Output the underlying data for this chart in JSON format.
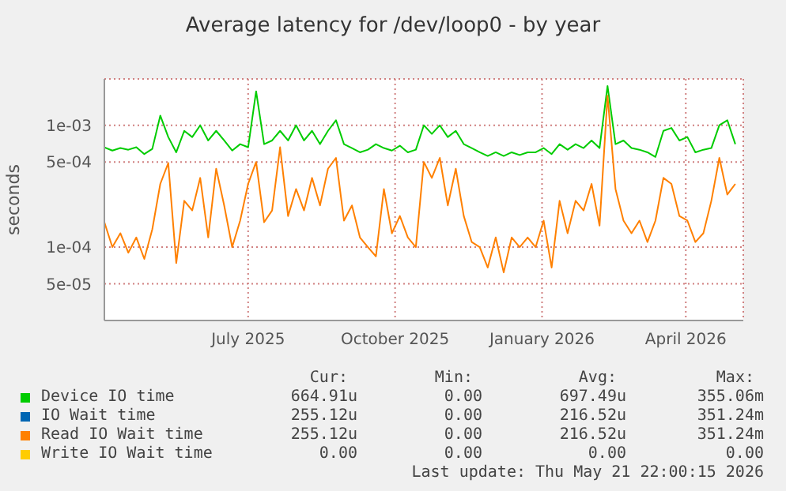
{
  "chart_data": {
    "type": "line",
    "title": "Average latency for /dev/loop0 - by year",
    "ylabel": "seconds",
    "log": "y",
    "grid": true,
    "legend": "bottom",
    "marker": "none",
    "line_style": "solid",
    "x": [
      "2025-04-16",
      "2025-04-21",
      "2025-04-26",
      "2025-05-01",
      "2025-05-06",
      "2025-05-11",
      "2025-05-16",
      "2025-05-21",
      "2025-05-26",
      "2025-05-31",
      "2025-06-05",
      "2025-06-10",
      "2025-06-15",
      "2025-06-20",
      "2025-06-25",
      "2025-06-30",
      "2025-07-05",
      "2025-07-10",
      "2025-07-15",
      "2025-07-20",
      "2025-07-25",
      "2025-07-30",
      "2025-08-04",
      "2025-08-09",
      "2025-08-14",
      "2025-08-19",
      "2025-08-24",
      "2025-08-29",
      "2025-09-03",
      "2025-09-08",
      "2025-09-13",
      "2025-09-18",
      "2025-09-23",
      "2025-09-28",
      "2025-10-03",
      "2025-10-08",
      "2025-10-13",
      "2025-10-18",
      "2025-10-23",
      "2025-10-28",
      "2025-11-02",
      "2025-11-07",
      "2025-11-12",
      "2025-11-17",
      "2025-11-22",
      "2025-11-27",
      "2025-12-02",
      "2025-12-07",
      "2025-12-12",
      "2025-12-17",
      "2025-12-22",
      "2025-12-27",
      "2026-01-01",
      "2026-01-06",
      "2026-01-11",
      "2026-01-16",
      "2026-01-21",
      "2026-01-26",
      "2026-01-31",
      "2026-02-05",
      "2026-02-10",
      "2026-02-15",
      "2026-02-20",
      "2026-02-25",
      "2026-03-02",
      "2026-03-07",
      "2026-03-12",
      "2026-03-17",
      "2026-03-22",
      "2026-03-27",
      "2026-04-01",
      "2026-04-06",
      "2026-04-11",
      "2026-04-16",
      "2026-04-21",
      "2026-04-26",
      "2026-05-01",
      "2026-05-06",
      "2026-05-11",
      "2026-05-16"
    ],
    "xlim": [
      "2025-04-16",
      "2026-05-21"
    ],
    "xticks": [
      {
        "value": "2025-07-15",
        "label": "July 2025"
      },
      {
        "value": "2025-10-15",
        "label": "October 2025"
      },
      {
        "value": "2026-01-15",
        "label": "January 2026"
      },
      {
        "value": "2026-04-15",
        "label": "April 2026"
      }
    ],
    "ylim": [
      2.5e-05,
      0.0024
    ],
    "yticks": [
      {
        "value": 5e-05,
        "label": "5e-05"
      },
      {
        "value": 0.0001,
        "label": "1e-04"
      },
      {
        "value": 0.0005,
        "label": "5e-04"
      },
      {
        "value": 0.001,
        "label": "1e-03"
      }
    ],
    "series": [
      {
        "name": "Device IO time",
        "color": "#00cc00",
        "values": [
          0.00066,
          0.00062,
          0.00065,
          0.00063,
          0.00066,
          0.00058,
          0.00064,
          0.0012,
          0.0008,
          0.0006,
          0.0009,
          0.0008,
          0.001,
          0.00075,
          0.0009,
          0.00075,
          0.00062,
          0.0007,
          0.00066,
          0.0019,
          0.0007,
          0.00075,
          0.0009,
          0.00075,
          0.001,
          0.00075,
          0.0009,
          0.0007,
          0.0009,
          0.0011,
          0.0007,
          0.00065,
          0.0006,
          0.00063,
          0.0007,
          0.00065,
          0.00062,
          0.00068,
          0.0006,
          0.00063,
          0.001,
          0.00085,
          0.001,
          0.0008,
          0.0009,
          0.0007,
          0.00065,
          0.0006,
          0.00056,
          0.0006,
          0.00056,
          0.0006,
          0.00057,
          0.0006,
          0.0006,
          0.00065,
          0.00058,
          0.0007,
          0.00063,
          0.0007,
          0.00065,
          0.00075,
          0.00065,
          0.0021,
          0.0007,
          0.00075,
          0.00065,
          0.00063,
          0.0006,
          0.00055,
          0.0009,
          0.00095,
          0.00075,
          0.0008,
          0.0006,
          0.00063,
          0.00065,
          0.001,
          0.0011,
          0.0007
        ]
      },
      {
        "name": "IO Wait time",
        "color": "#0066b3",
        "values": [
          null,
          null,
          null,
          null,
          null,
          null,
          null,
          null,
          null,
          null,
          null,
          null,
          null,
          null,
          null,
          null,
          null,
          null,
          null,
          null,
          null,
          null,
          null,
          null,
          null,
          null,
          null,
          null,
          null,
          null,
          null,
          null,
          null,
          null,
          null,
          null,
          null,
          null,
          null,
          null,
          null,
          null,
          null,
          null,
          null,
          null,
          null,
          null,
          null,
          null,
          null,
          null,
          null,
          null,
          null,
          null,
          null,
          null,
          null,
          null,
          null,
          null,
          null,
          null,
          null,
          null,
          null,
          null,
          null,
          null,
          null,
          null,
          null,
          null,
          null,
          null,
          null,
          null,
          null,
          null
        ]
      },
      {
        "name": "Read IO Wait time",
        "color": "#ff8000",
        "values": [
          0.00016,
          0.0001,
          0.00013,
          9e-05,
          0.00012,
          8e-05,
          0.00014,
          0.00033,
          0.00049,
          7.4e-05,
          0.00024,
          0.0002,
          0.00037,
          0.00012,
          0.00044,
          0.00022,
          0.0001,
          0.000165,
          0.00033,
          0.0005,
          0.00016,
          0.0002,
          0.00066,
          0.00018,
          0.0003,
          0.0002,
          0.00037,
          0.00022,
          0.00044,
          0.00054,
          0.000165,
          0.00022,
          0.00012,
          0.0001,
          8.4e-05,
          0.0003,
          0.00013,
          0.00018,
          0.00012,
          0.0001,
          0.0005,
          0.00037,
          0.00054,
          0.00022,
          0.00044,
          0.00018,
          0.00011,
          0.0001,
          6.8e-05,
          0.00012,
          6.2e-05,
          0.00012,
          0.0001,
          0.00012,
          0.0001,
          0.000165,
          6.8e-05,
          0.00024,
          0.00013,
          0.00024,
          0.0002,
          0.00033,
          0.00015,
          0.00175,
          0.0003,
          0.000165,
          0.00013,
          0.000165,
          0.00011,
          0.000165,
          0.00037,
          0.00033,
          0.00018,
          0.000165,
          0.00011,
          0.00013,
          0.00024,
          0.00054,
          0.00027,
          0.00033
        ]
      },
      {
        "name": "Write IO Wait time",
        "color": "#ffcc00",
        "values": [
          null,
          null,
          null,
          null,
          null,
          null,
          null,
          null,
          null,
          null,
          null,
          null,
          null,
          null,
          null,
          null,
          null,
          null,
          null,
          null,
          null,
          null,
          null,
          null,
          null,
          null,
          null,
          null,
          null,
          null,
          null,
          null,
          null,
          null,
          null,
          null,
          null,
          null,
          null,
          null,
          null,
          null,
          null,
          null,
          null,
          null,
          null,
          null,
          null,
          null,
          null,
          null,
          null,
          null,
          null,
          null,
          null,
          null,
          null,
          null,
          null,
          null,
          null,
          null,
          null,
          null,
          null,
          null,
          null,
          null,
          null,
          null,
          null,
          null,
          null,
          null,
          null,
          null,
          null,
          null
        ]
      }
    ],
    "annotations": [
      "Cur:",
      "Min:",
      "Avg:",
      "Max:",
      "664.91u",
      "0.00",
      "697.49u",
      "355.06m",
      "255.12u",
      "0.00",
      "216.52u",
      "351.24m",
      "255.12u",
      "0.00",
      "216.52u",
      "351.24m",
      "0.00",
      "0.00",
      "0.00",
      "0.00",
      "Last update: Thu May 21 22:00:15 2026"
    ]
  }
}
